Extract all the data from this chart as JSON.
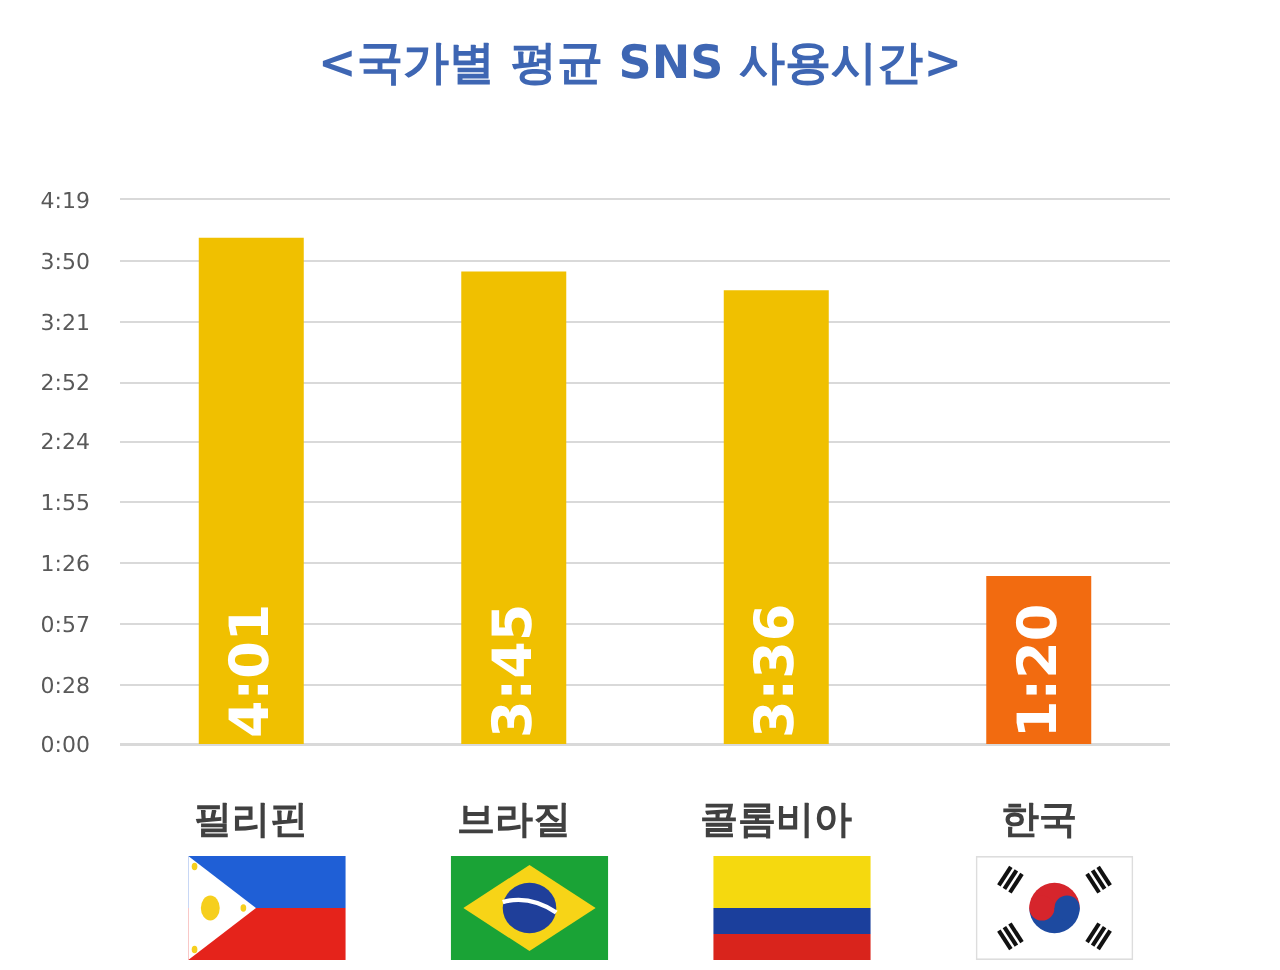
{
  "chart_data": {
    "type": "bar",
    "title": "<국가별 평균 SNS 사용시간>",
    "categories": [
      "필리핀",
      "브라질",
      "콜롬비아",
      "한국"
    ],
    "values": [
      241,
      225,
      216,
      80
    ],
    "colors": [
      "#f0c000",
      "#f0c000",
      "#f0c000",
      "#f26b10"
    ],
    "value_labels": [
      "4:01",
      "3:45",
      "3:36",
      "1:20"
    ],
    "ylim": [
      0,
      259
    ],
    "yticks": [
      {
        "value": 0,
        "label": "0:00"
      },
      {
        "value": 28,
        "label": "0:28"
      },
      {
        "value": 57,
        "label": "0:57"
      },
      {
        "value": 86,
        "label": "1:26"
      },
      {
        "value": 115,
        "label": "1:55"
      },
      {
        "value": 144,
        "label": "2:24"
      },
      {
        "value": 172,
        "label": "2:52"
      },
      {
        "value": 201,
        "label": "3:21"
      },
      {
        "value": 230,
        "label": "3:50"
      },
      {
        "value": 259,
        "label": "4:19"
      }
    ],
    "grid": "y"
  }
}
